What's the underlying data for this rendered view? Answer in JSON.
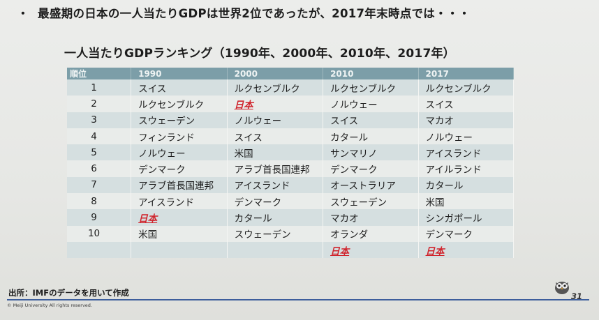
{
  "header": {
    "bullet": "・",
    "text": "最盛期の日本の一人当たりGDPは世界2位であったが、2017年末時点では・・・"
  },
  "subtitle": "一人当たりGDPランキング（1990年、2000年、2010年、2017年）",
  "table": {
    "headers": [
      "順位",
      "1990",
      "2000",
      "2010",
      "2017"
    ],
    "rows": [
      [
        "1",
        "スイス",
        "ルクセンブルク",
        "ルクセンブルク",
        "ルクセンブルク"
      ],
      [
        "2",
        "ルクセンブルク",
        "日本",
        "ノルウェー",
        "スイス"
      ],
      [
        "3",
        "スウェーデン",
        "ノルウェー",
        "スイス",
        "マカオ"
      ],
      [
        "4",
        "フィンランド",
        "スイス",
        "カタール",
        "ノルウェー"
      ],
      [
        "5",
        "ノルウェー",
        "米国",
        "サンマリノ",
        "アイスランド"
      ],
      [
        "6",
        "デンマーク",
        "アラブ首長国連邦",
        "デンマーク",
        "アイルランド"
      ],
      [
        "7",
        "アラブ首長国連邦",
        "アイスランド",
        "オーストラリア",
        "カタール"
      ],
      [
        "8",
        "アイスランド",
        "デンマーク",
        "スウェーデン",
        "米国"
      ],
      [
        "9",
        "日本",
        "カタール",
        "マカオ",
        "シンガポール"
      ],
      [
        "10",
        "米国",
        "スウェーデン",
        "オランダ",
        "デンマーク"
      ],
      [
        "",
        "",
        "",
        "日本",
        "日本"
      ]
    ]
  },
  "source": "出所：IMFのデータを用いて作成",
  "copyright": "© Meiji University All rights reserved.",
  "page_number": "31",
  "colors": {
    "header_row": "#7c9ea8",
    "row_odd": "#d5dfe0",
    "row_even": "#e9ecea",
    "japan_highlight": "#d0242c",
    "divider": "#3c5e9c"
  },
  "icons": {
    "mascot": "owl-mascot-icon"
  }
}
